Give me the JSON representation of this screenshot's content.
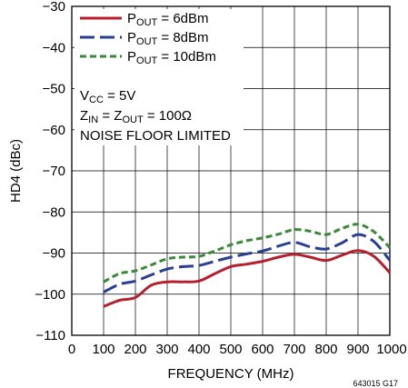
{
  "chart_data": {
    "type": "line",
    "xlabel": "FREQUENCY (MHz)",
    "ylabel": "HD4 (dBc)",
    "xlim": [
      0,
      1000
    ],
    "ylim": [
      -110,
      -30
    ],
    "x_ticks": [
      "0",
      "100",
      "200",
      "300",
      "400",
      "500",
      "600",
      "700",
      "800",
      "900",
      "1000"
    ],
    "y_ticks": [
      "−30",
      "−40",
      "−50",
      "−60",
      "−70",
      "−80",
      "−90",
      "−100",
      "−110"
    ],
    "grid": true,
    "legend_position": "top-left",
    "series": [
      {
        "name": "P_OUT = 6dBm",
        "label_main": "P",
        "label_sub": "OUT",
        "label_rest": " = 6dBm",
        "color": "#b5202e",
        "dash": "solid",
        "x": [
          100,
          150,
          200,
          250,
          300,
          350,
          400,
          450,
          500,
          550,
          600,
          650,
          700,
          750,
          800,
          850,
          900,
          950,
          1000
        ],
        "values": [
          -103,
          -101.5,
          -100.8,
          -97.8,
          -97.0,
          -97.0,
          -96.8,
          -95.0,
          -93.3,
          -92.7,
          -92.0,
          -91.0,
          -90.3,
          -91.0,
          -91.8,
          -90.5,
          -89.4,
          -90.8,
          -94.8
        ]
      },
      {
        "name": "P_OUT = 8dBm",
        "label_main": "P",
        "label_sub": "OUT",
        "label_rest": " = 8dBm",
        "color": "#2a3f94",
        "dash": "dashed",
        "x": [
          100,
          150,
          200,
          250,
          300,
          350,
          400,
          450,
          500,
          550,
          600,
          650,
          700,
          750,
          800,
          850,
          900,
          950,
          1000
        ],
        "values": [
          -99.5,
          -97.6,
          -96.8,
          -95.3,
          -93.9,
          -93.3,
          -93.0,
          -92.0,
          -91.0,
          -90.2,
          -89.5,
          -88.3,
          -87.4,
          -88.5,
          -89.0,
          -87.5,
          -85.5,
          -87.2,
          -91.8
        ]
      },
      {
        "name": "P_OUT = 10dBm",
        "label_main": "P",
        "label_sub": "OUT",
        "label_rest": " = 10dBm",
        "color": "#3a8a3a",
        "dash": "dotted-dash",
        "x": [
          100,
          150,
          200,
          250,
          300,
          350,
          400,
          450,
          500,
          550,
          600,
          650,
          700,
          750,
          800,
          850,
          900,
          950,
          1000
        ],
        "values": [
          -97.0,
          -95.0,
          -94.3,
          -92.9,
          -91.4,
          -91.0,
          -90.8,
          -89.5,
          -88.0,
          -87.0,
          -86.3,
          -85.4,
          -84.3,
          -84.7,
          -85.5,
          -84.0,
          -83.0,
          -84.8,
          -88.7
        ]
      }
    ],
    "annotations": {
      "vcc_main": "V",
      "vcc_sub": "CC",
      "vcc_rest": " = 5V",
      "z_main1": "Z",
      "z_sub1": "IN",
      "z_mid": " = Z",
      "z_sub2": "OUT",
      "z_rest": " = 100Ω",
      "noise": "NOISE FLOOR LIMITED"
    },
    "figure_id": "643015 G17"
  }
}
